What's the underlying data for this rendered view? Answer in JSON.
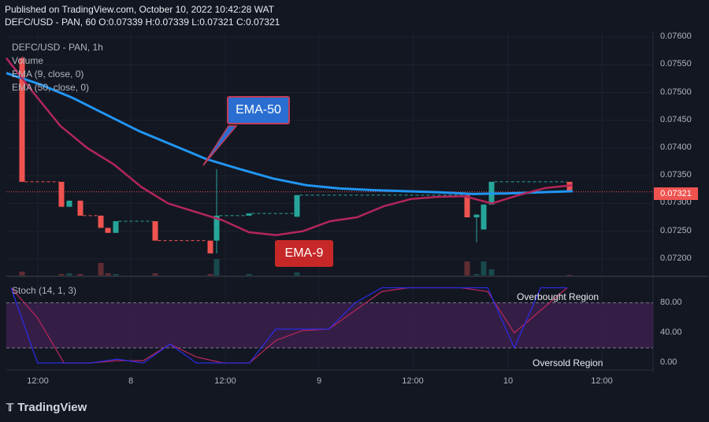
{
  "header": {
    "published": "Published on TradingView.com, October 10, 2022 10:42:28 WAT",
    "symbol_line": "DEFC/USD - PAN, 60  O:0.07339 H:0.07339 L:0.07321 C:0.07321"
  },
  "legend": {
    "title": "DEFC/USD - PAN, 1h",
    "volume": "Volume",
    "ema9": "EMA (9, close, 0)",
    "ema50": "EMA (50, close, 0)",
    "stoch": "Stoch (14, 1, 3)"
  },
  "annotations": {
    "ema50": "EMA-50",
    "ema9": "EMA-9",
    "overbought": "Overbought Region",
    "oversold": "Oversold Region"
  },
  "price_tag": "0.07321",
  "footer": {
    "brand": "TradingView",
    "logo_icon": "tradingview-logo-icon"
  },
  "colors": {
    "up": "#26a69a",
    "down": "#ef5350",
    "ema9": "#b3265a",
    "ema50": "#2196f3",
    "stoch_k": "#2a2ae0",
    "stoch_d": "#b3265a"
  },
  "chart_data": {
    "type": "candlestick",
    "title": "DEFC/USD - PAN, 1h",
    "y_ticks": [
      "0.07600",
      "0.07550",
      "0.07500",
      "0.07450",
      "0.07400",
      "0.07350",
      "0.07300",
      "0.07250",
      "0.07200"
    ],
    "y_range": [
      0.0717,
      0.0761
    ],
    "x_ticks": [
      "12:00",
      "8",
      "12:00",
      "9",
      "12:00",
      "10",
      "12:00"
    ],
    "candles": [
      {
        "o": 0.07562,
        "h": 0.07565,
        "l": 0.07339,
        "c": 0.07339
      },
      {
        "o": 0.07339,
        "h": 0.07339,
        "l": 0.07294,
        "c": 0.07294
      },
      {
        "o": 0.07294,
        "h": 0.07305,
        "l": 0.07294,
        "c": 0.07305
      },
      {
        "o": 0.07305,
        "h": 0.07305,
        "l": 0.07278,
        "c": 0.07278
      },
      {
        "o": 0.07278,
        "h": 0.07278,
        "l": 0.07256,
        "c": 0.07256
      },
      {
        "o": 0.07256,
        "h": 0.07256,
        "l": 0.07247,
        "c": 0.07247
      },
      {
        "o": 0.07247,
        "h": 0.07268,
        "l": 0.07247,
        "c": 0.07268
      },
      {
        "o": 0.07268,
        "h": 0.07268,
        "l": 0.07233,
        "c": 0.07233
      },
      {
        "o": 0.07233,
        "h": 0.07233,
        "l": 0.0721,
        "c": 0.0721
      },
      {
        "o": 0.07233,
        "h": 0.07362,
        "l": 0.0721,
        "c": 0.07278
      },
      {
        "o": 0.07278,
        "h": 0.07282,
        "l": 0.07278,
        "c": 0.07282
      },
      {
        "o": 0.07276,
        "h": 0.07315,
        "l": 0.07276,
        "c": 0.07315
      },
      {
        "o": 0.07315,
        "h": 0.07315,
        "l": 0.07275,
        "c": 0.07275
      },
      {
        "o": 0.07275,
        "h": 0.0728,
        "l": 0.0723,
        "c": 0.0728
      },
      {
        "o": 0.07253,
        "h": 0.07298,
        "l": 0.07253,
        "c": 0.07298
      },
      {
        "o": 0.07298,
        "h": 0.07339,
        "l": 0.07298,
        "c": 0.07339
      },
      {
        "o": 0.07339,
        "h": 0.07339,
        "l": 0.07321,
        "c": 0.07321
      }
    ],
    "ema9": [
      0.07562,
      0.075,
      0.0744,
      0.074,
      0.0737,
      0.0733,
      0.073,
      0.07285,
      0.0727,
      0.07248,
      0.07243,
      0.0725,
      0.07268,
      0.07275,
      0.07295,
      0.07308,
      0.07312,
      0.07313,
      0.073,
      0.07315,
      0.07328,
      0.07333
    ],
    "ema50": [
      0.07535,
      0.07515,
      0.0749,
      0.0746,
      0.0743,
      0.07405,
      0.0738,
      0.07362,
      0.07345,
      0.07333,
      0.07327,
      0.07324,
      0.07322,
      0.0732,
      0.07317,
      0.07318,
      0.0732,
      0.07322
    ],
    "stoch_ticks": [
      "80.00",
      "40.00",
      "0.00"
    ],
    "stoch_levels": [
      80,
      20
    ],
    "stoch_k": [
      100,
      0,
      0,
      0,
      5,
      0,
      25,
      0,
      0,
      0,
      45,
      45,
      45,
      80,
      100,
      100,
      100,
      100,
      100,
      20,
      100,
      100
    ],
    "stoch_d": [
      100,
      60,
      0,
      0,
      3,
      3,
      25,
      8,
      0,
      0,
      30,
      43,
      45,
      70,
      95,
      100,
      100,
      100,
      95,
      40,
      70,
      100
    ]
  }
}
